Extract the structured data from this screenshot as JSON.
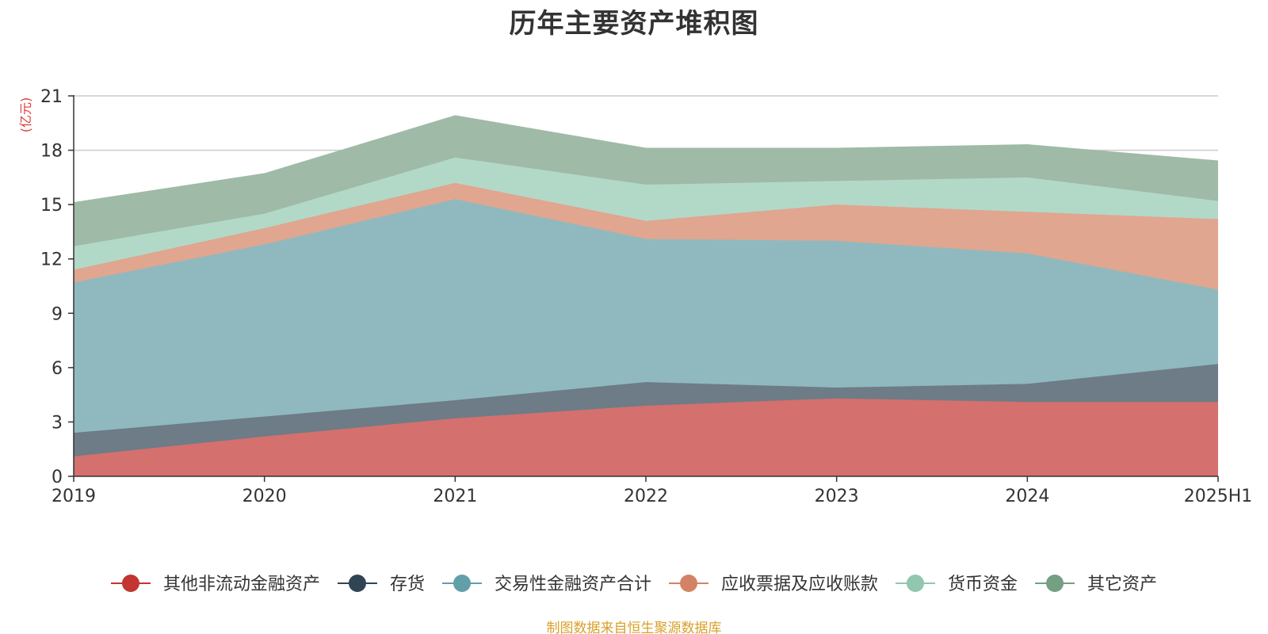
{
  "title": "历年主要资产堆积图",
  "source": "制图数据来自恒生聚源数据库",
  "colors": {
    "title": "#333333",
    "unit": "#e03b3b",
    "source": "#d9a02a",
    "grid": "#cccccc",
    "axis": "#333333"
  },
  "chart_data": {
    "type": "area",
    "stacked": true,
    "title": "历年主要资产堆积图",
    "unit_label": "(亿元)",
    "categories": [
      "2019",
      "2020",
      "2021",
      "2022",
      "2023",
      "2024",
      "2025H1"
    ],
    "ylim": [
      0,
      21
    ],
    "yticks": [
      0,
      3,
      6,
      9,
      12,
      15,
      18,
      21
    ],
    "grid": true,
    "legend_position": "bottom",
    "series": [
      {
        "name": "其他非流动金融资产",
        "color": "#c23531",
        "fill": "#d4706e",
        "values": [
          1.1,
          2.2,
          3.2,
          3.9,
          4.3,
          4.1,
          4.1
        ]
      },
      {
        "name": "存货",
        "color": "#2f4554",
        "fill": "#6d7c86",
        "values": [
          1.3,
          1.1,
          1.0,
          1.3,
          0.6,
          1.0,
          2.1
        ]
      },
      {
        "name": "交易性金融资产合计",
        "color": "#61a0a8",
        "fill": "#90b9bf",
        "values": [
          8.3,
          9.5,
          11.1,
          7.9,
          8.1,
          7.2,
          4.1
        ]
      },
      {
        "name": "应收票据及应收账款",
        "color": "#d48265",
        "fill": "#e0a690",
        "values": [
          0.7,
          0.9,
          0.9,
          1.0,
          2.0,
          2.3,
          3.9
        ]
      },
      {
        "name": "货币资金",
        "color": "#91c7ae",
        "fill": "#b2d9c8",
        "values": [
          1.3,
          0.8,
          1.4,
          2.0,
          1.3,
          1.9,
          1.0
        ]
      },
      {
        "name": "其它资产",
        "color": "#749f83",
        "fill": "#9fbaa7",
        "values": [
          2.4,
          2.2,
          2.3,
          2.0,
          1.8,
          1.8,
          2.2
        ]
      }
    ]
  }
}
